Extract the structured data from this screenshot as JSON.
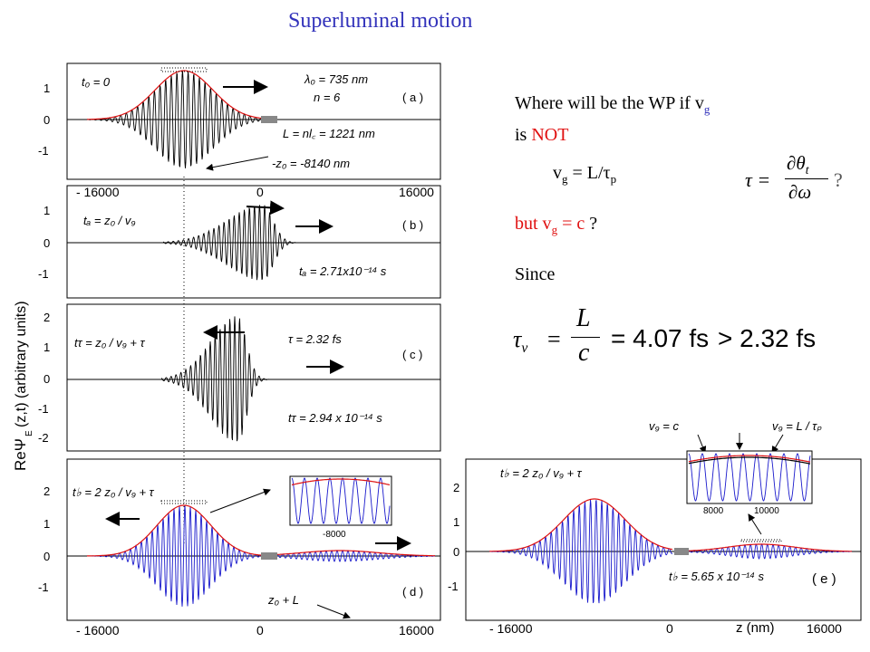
{
  "slide": {
    "title": "Superluminal motion",
    "question_line1_pre": "Where will be the WP  if v",
    "question_line1_sub": "g",
    "question_line2_pre": "is ",
    "question_line2_red": "NOT",
    "vg_lhs": "v",
    "vg_sub": "g",
    "vg_rhs": " = L/τ",
    "vg_rhs_sub": "p",
    "but_pre": "but v",
    "but_sub": "g",
    "but_eq": " =  c",
    "but_q": " ?",
    "since": "Since",
    "tau_def_lhs": "τ =",
    "tau_def_num": "∂θ",
    "tau_def_num_sub": "t",
    "tau_def_den": "∂ω",
    "tau_def_q": "?",
    "tau_v_lhs": "τ",
    "tau_v_sub": "v",
    "tau_v_eq": "=",
    "tau_v_num": "L",
    "tau_v_den": "c",
    "tau_v_val": "= 4.07  fs",
    "tau_v_cmp": ">  2.32  fs"
  },
  "figure": {
    "y_axis_label": "ReΨ",
    "y_axis_label_sub": "E",
    "y_axis_label_rest": " (z,t)  (arbitrary units)",
    "x_axis_label": "z  (nm)",
    "panel_a": {
      "t0": "t₀  =  0",
      "lambda": "λ₀  =  735 nm",
      "n": "n  =  6",
      "tag": "( a )",
      "L": "L  =  nl꜀  =  1221  nm",
      "z0": "-z₀ = -8140  nm",
      "yticks": [
        "1",
        "0",
        "-1"
      ]
    },
    "panel_b": {
      "ta_eq": "tₐ  =  z₀  /  v₉",
      "tag": "( b )",
      "ta_val": "tₐ  =  2.71x10⁻¹⁴  s",
      "xticks": [
        "- 16000",
        "0",
        "16000"
      ],
      "yticks": [
        "1",
        "0",
        "-1"
      ]
    },
    "panel_c": {
      "tt_eq": "tτ  =  z₀  /  v₉ +  τ",
      "tau_val": "τ  =  2.32  fs",
      "tag": "( c )",
      "tt_val": "tτ  =    2.94  x 10⁻¹⁴  s",
      "yticks": [
        "2",
        "1",
        "0",
        "-1",
        "-2"
      ]
    },
    "panel_d": {
      "tb_eq": "t♭  =  2  z₀  /  v₉ +  τ",
      "tag": "( d )",
      "z0L": "z₀ + L",
      "inset_tick": "-8000",
      "xticks": [
        "- 16000",
        "0",
        "16000"
      ],
      "yticks": [
        "2",
        "1",
        "0",
        "-1"
      ]
    },
    "panel_e": {
      "tb_eq": "t♭  =  2  z₀  /  v₉ +  τ",
      "tb_val": "t♭  =  5.65  x 10⁻¹⁴  s",
      "tag": "( e )",
      "vg_c": "v₉  =  c",
      "vg_L": "v₉  =  L / τₚ",
      "inset_ticks": [
        "8000",
        "10000"
      ],
      "xticks": [
        "- 16000",
        "0",
        "16000"
      ],
      "yticks": [
        "2",
        "1",
        "0",
        "-1"
      ]
    }
  },
  "colors": {
    "title": "#3333bb",
    "accent_red": "#e01010",
    "wave_blue": "#1a1acc",
    "envelope_red": "#dd1111"
  }
}
